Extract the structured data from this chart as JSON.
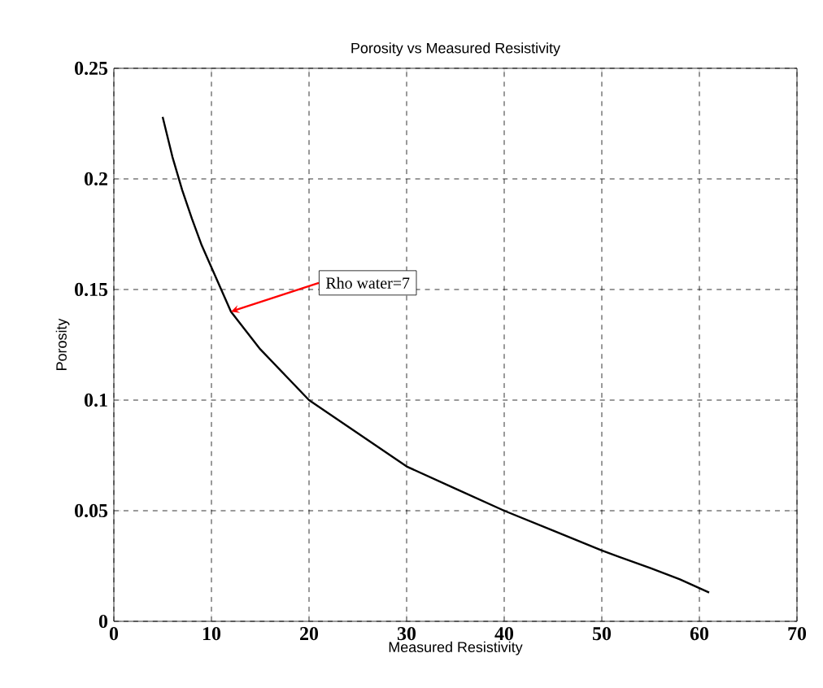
{
  "chart_data": {
    "type": "line",
    "title": "Porosity vs Measured Resistivity",
    "xlabel": "Measured Resistivity",
    "ylabel": "Porosity",
    "series": [
      {
        "color": "#000000",
        "x": [
          5,
          6,
          7,
          8,
          9,
          10,
          12,
          15,
          20,
          25,
          30,
          35,
          40,
          45,
          50,
          55,
          58,
          61
        ],
        "values": [
          0.228,
          0.21,
          0.195,
          0.182,
          0.17,
          0.16,
          0.14,
          0.123,
          0.1,
          0.085,
          0.07,
          0.06,
          0.05,
          0.041,
          0.032,
          0.024,
          0.019,
          0.013
        ]
      }
    ],
    "xlim": [
      0,
      70
    ],
    "ylim": [
      0,
      0.25
    ],
    "xticks": [
      0,
      10,
      20,
      30,
      40,
      50,
      60,
      70
    ],
    "yticks": [
      0,
      0.05,
      0.1,
      0.15,
      0.2,
      0.25
    ],
    "grid": true,
    "line_style": "solid",
    "marker": "none",
    "annotations": [
      {
        "text": "Rho water=7",
        "x": 12,
        "y": 0.14
      }
    ]
  }
}
